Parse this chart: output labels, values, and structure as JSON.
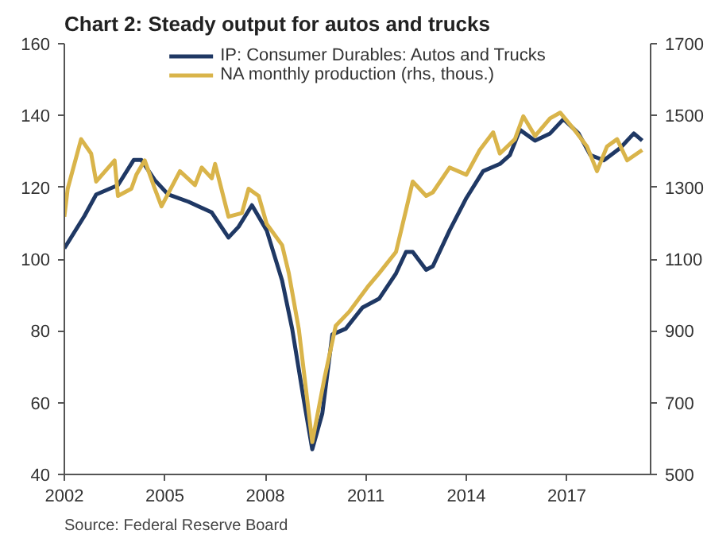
{
  "chart_data": {
    "type": "line",
    "title": "Chart 2: Steady output for autos and trucks",
    "annotations": [
      "Source: Federal Reserve Board"
    ],
    "xlim": [
      2002,
      2019.5
    ],
    "xticks": [
      2002,
      2005,
      2008,
      2011,
      2014,
      2017
    ],
    "ylim": [
      40,
      160
    ],
    "yticks": [
      40,
      60,
      80,
      100,
      120,
      140,
      160
    ],
    "y2lim": [
      500,
      1700
    ],
    "y2ticks": [
      500,
      700,
      900,
      1100,
      1300,
      1500,
      1700
    ],
    "grid": false,
    "legend": "top",
    "line_style": "solid",
    "marker": "none",
    "series": [
      {
        "name": "IP: Consumer Durables: Autos and Trucks",
        "color": "#1f3864",
        "x": [
          2002.0,
          2002.6,
          2002.95,
          2003.6,
          2004.07,
          2004.3,
          2004.7,
          2005.1,
          2005.7,
          2006.4,
          2006.9,
          2007.2,
          2007.6,
          2008.04,
          2008.5,
          2008.8,
          2009.15,
          2009.4,
          2009.7,
          2010.0,
          2010.4,
          2010.9,
          2011.4,
          2011.9,
          2012.2,
          2012.4,
          2012.8,
          2013.0,
          2013.5,
          2014.0,
          2014.5,
          2015.0,
          2015.3,
          2015.6,
          2016.05,
          2016.5,
          2016.9,
          2017.35,
          2017.7,
          2018.1,
          2018.6,
          2019.0,
          2019.25
        ],
        "values": [
          103,
          112,
          118,
          120.6,
          127.6,
          127.6,
          122,
          118,
          116,
          113,
          106,
          109,
          115,
          108,
          94,
          80.6,
          60.6,
          47,
          57,
          79,
          80.6,
          86.5,
          89,
          96,
          102,
          102,
          97,
          98,
          108,
          117,
          124.5,
          126.5,
          129,
          136,
          133,
          135,
          139,
          135,
          129,
          127.5,
          131,
          135,
          133
        ]
      },
      {
        "name": "NA monthly production (rhs, thous.)",
        "color": "#d9b44a",
        "axis": "y2",
        "x": [
          2002.0,
          2002.1,
          2002.5,
          2002.8,
          2002.95,
          2003.5,
          2003.6,
          2004.0,
          2004.15,
          2004.4,
          2004.7,
          2004.9,
          2005.45,
          2005.9,
          2006.1,
          2006.4,
          2006.5,
          2006.9,
          2007.3,
          2007.5,
          2007.8,
          2008.04,
          2008.5,
          2008.7,
          2009.0,
          2009.4,
          2009.76,
          2010.1,
          2010.5,
          2011.05,
          2011.4,
          2011.9,
          2012.2,
          2012.4,
          2012.8,
          2013.0,
          2013.5,
          2014.0,
          2014.4,
          2014.8,
          2015.0,
          2015.45,
          2015.7,
          2016.05,
          2016.5,
          2016.8,
          2017.2,
          2017.6,
          2017.9,
          2018.2,
          2018.5,
          2018.8,
          2019.25
        ],
        "values": [
          1218,
          1296,
          1434,
          1394,
          1316,
          1375,
          1276,
          1296,
          1335,
          1375,
          1296,
          1247,
          1345,
          1306,
          1355,
          1325,
          1365,
          1218,
          1228,
          1296,
          1276,
          1198,
          1139,
          1061,
          904,
          590,
          766,
          914,
          953,
          1022,
          1061,
          1120,
          1237,
          1316,
          1276,
          1286,
          1355,
          1335,
          1404,
          1453,
          1394,
          1434,
          1498,
          1443,
          1492,
          1508,
          1463,
          1414,
          1345,
          1414,
          1434,
          1375,
          1404
        ]
      }
    ]
  }
}
